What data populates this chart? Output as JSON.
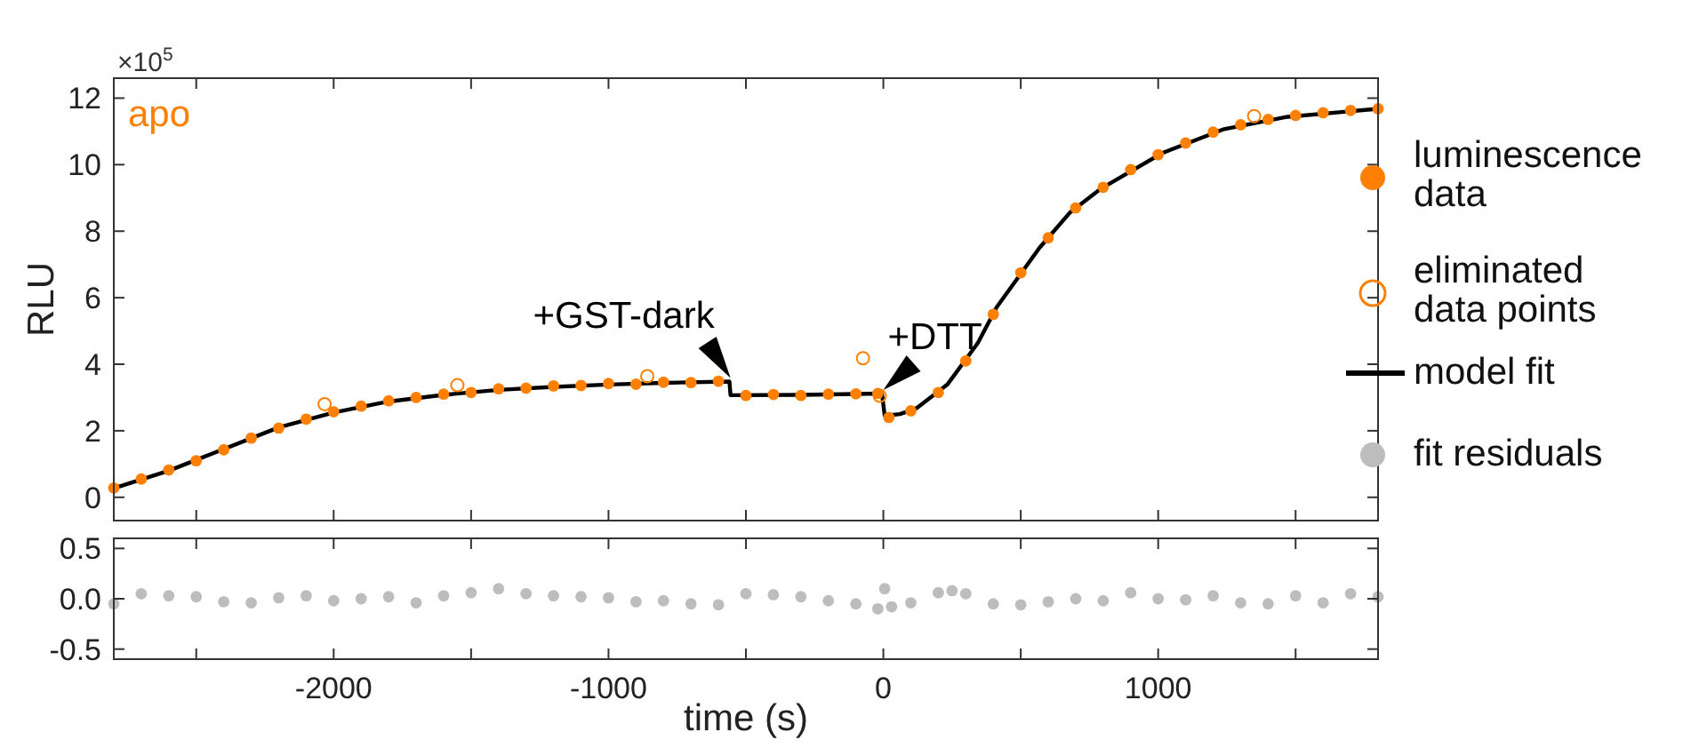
{
  "chart_data": [
    {
      "type": "scatter",
      "ylabel": "RLU",
      "annotations": [
        "apo",
        "×10$^{5}$",
        {
          "text": "+GST-dark",
          "x": -556,
          "y": 3.48
        },
        {
          "text": "+DTT",
          "x": 0,
          "y": 3.12
        }
      ],
      "xlim": [
        -2800,
        1800
      ],
      "ylim": [
        -0.7,
        12.6
      ],
      "xticks": [
        {
          "value": -2500,
          "label": null
        },
        {
          "value": -2000,
          "label": null
        },
        {
          "value": -1500,
          "label": null
        },
        {
          "value": -1000,
          "label": null
        },
        {
          "value": -500,
          "label": null
        },
        {
          "value": 0,
          "label": null
        },
        {
          "value": 500,
          "label": null
        },
        {
          "value": 1000,
          "label": null
        },
        {
          "value": 1500,
          "label": null
        }
      ],
      "yticks": [
        0,
        2,
        4,
        6,
        8,
        10,
        12
      ],
      "tick_labels": "y",
      "legend": "right",
      "grid": false,
      "series": [
        {
          "name": "luminescence data",
          "marker": "circle",
          "color": "#ff8000",
          "x": [
            -2800,
            -2700,
            -2600,
            -2500,
            -2400,
            -2300,
            -2200,
            -2100,
            -2000,
            -1900,
            -1800,
            -1700,
            -1600,
            -1500,
            -1400,
            -1300,
            -1200,
            -1100,
            -1000,
            -900,
            -800,
            -700,
            -600,
            -500,
            -400,
            -300,
            -200,
            -100,
            -20,
            20,
            100,
            200,
            300,
            400,
            500,
            600,
            700,
            800,
            900,
            1000,
            1100,
            1200,
            1300,
            1400,
            1500,
            1600,
            1700,
            1800
          ],
          "values": [
            0.28,
            0.55,
            0.82,
            1.1,
            1.43,
            1.78,
            2.08,
            2.35,
            2.57,
            2.74,
            2.9,
            3.0,
            3.1,
            3.15,
            3.26,
            3.28,
            3.35,
            3.36,
            3.42,
            3.4,
            3.46,
            3.45,
            3.49,
            3.06,
            3.09,
            3.06,
            3.1,
            3.11,
            3.12,
            2.4,
            2.6,
            3.15,
            4.1,
            5.5,
            6.75,
            7.8,
            8.7,
            9.32,
            9.85,
            10.3,
            10.65,
            10.98,
            11.2,
            11.36,
            11.48,
            11.56,
            11.63,
            11.68
          ]
        },
        {
          "name": "eliminated data points",
          "marker": "circle-open",
          "color": "#ff8000",
          "x": [
            -2033,
            -1550,
            -859,
            -74,
            -13,
            1349
          ],
          "values": [
            2.8,
            3.37,
            3.64,
            4.18,
            3.05,
            11.46
          ]
        },
        {
          "name": "model fit",
          "type": "line",
          "color": "#000000",
          "x": [
            -2800,
            -2600,
            -2400,
            -2200,
            -2000,
            -1800,
            -1600,
            -1400,
            -1200,
            -1000,
            -800,
            -560,
            -556,
            -300,
            -5,
            5,
            60,
            121,
            233,
            344,
            412,
            568,
            680,
            792,
            1015,
            1240,
            1463,
            1800
          ],
          "values": [
            0.27,
            0.8,
            1.45,
            2.1,
            2.55,
            2.88,
            3.08,
            3.23,
            3.32,
            3.39,
            3.44,
            3.48,
            3.07,
            3.08,
            3.12,
            2.45,
            2.5,
            2.68,
            3.39,
            4.64,
            5.71,
            7.5,
            8.57,
            9.28,
            10.35,
            11.07,
            11.43,
            11.68
          ]
        }
      ]
    },
    {
      "type": "scatter",
      "xlabel": "time (s)",
      "xlim": [
        -2800,
        1800
      ],
      "ylim": [
        -0.6,
        0.6
      ],
      "xticks": [
        {
          "value": -2500,
          "label": null
        },
        -2000,
        {
          "value": -1500,
          "label": null
        },
        -1000,
        {
          "value": -500,
          "label": null
        },
        0,
        {
          "value": 500,
          "label": null
        },
        1000,
        {
          "value": 1500,
          "label": null
        }
      ],
      "yticks": [
        {
          "value": 0.5,
          "label": "0.5"
        },
        {
          "value": 0,
          "label": "0.0"
        },
        {
          "value": -0.5,
          "label": "-0.5"
        }
      ],
      "grid": false,
      "series": [
        {
          "name": "fit residuals",
          "marker": "circle",
          "color": "#bdbdbd",
          "x": [
            -2800,
            -2700,
            -2600,
            -2500,
            -2400,
            -2300,
            -2200,
            -2100,
            -2000,
            -1900,
            -1800,
            -1700,
            -1600,
            -1500,
            -1400,
            -1300,
            -1200,
            -1100,
            -1000,
            -900,
            -800,
            -700,
            -600,
            -500,
            -400,
            -300,
            -200,
            -100,
            -20,
            5,
            30,
            100,
            200,
            250,
            300,
            400,
            500,
            600,
            700,
            800,
            900,
            1000,
            1100,
            1200,
            1300,
            1400,
            1500,
            1600,
            1700,
            1800
          ],
          "values": [
            -0.05,
            0.05,
            0.03,
            0.02,
            -0.03,
            -0.04,
            0.01,
            0.03,
            -0.02,
            0.0,
            0.02,
            -0.04,
            0.03,
            0.06,
            0.1,
            0.05,
            0.03,
            0.02,
            0.01,
            -0.03,
            -0.02,
            -0.05,
            -0.06,
            0.05,
            0.04,
            0.02,
            -0.02,
            -0.05,
            -0.1,
            0.1,
            -0.08,
            -0.04,
            0.06,
            0.08,
            0.05,
            -0.05,
            -0.06,
            -0.03,
            0.0,
            -0.02,
            0.06,
            0.0,
            -0.01,
            0.03,
            -0.04,
            -0.05,
            0.03,
            -0.04,
            0.05,
            0.02
          ]
        }
      ]
    }
  ]
}
